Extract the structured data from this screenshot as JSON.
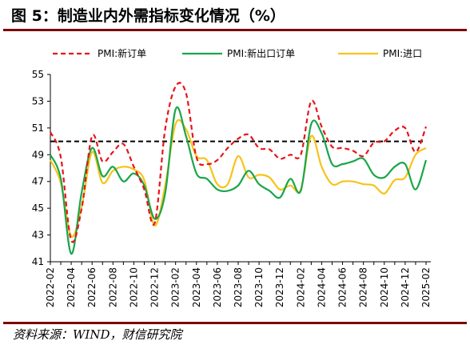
{
  "header": {
    "title": "图 5：制造业内外需指标变化情况（%）"
  },
  "footer": {
    "source": "资料来源：WIND，财信研究院"
  },
  "chart_data": {
    "type": "line",
    "ylim": [
      41,
      55
    ],
    "yticks": [
      41,
      43,
      45,
      47,
      49,
      51,
      53,
      55
    ],
    "xticks": [
      "2022-02",
      "2022-04",
      "2022-06",
      "2022-08",
      "2022-10",
      "2022-12",
      "2023-02",
      "2023-04",
      "2023-06",
      "2023-08",
      "2023-10",
      "2023-12",
      "2024-02",
      "2024-04",
      "2024-06",
      "2024-08",
      "2024-10",
      "2024-12",
      "2025-02"
    ],
    "x": [
      "2022-02",
      "2022-03",
      "2022-04",
      "2022-05",
      "2022-06",
      "2022-07",
      "2022-08",
      "2022-09",
      "2022-10",
      "2022-11",
      "2022-12",
      "2023-01",
      "2023-02",
      "2023-03",
      "2023-04",
      "2023-05",
      "2023-06",
      "2023-07",
      "2023-08",
      "2023-09",
      "2023-10",
      "2023-11",
      "2023-12",
      "2024-01",
      "2024-02",
      "2024-03",
      "2024-04",
      "2024-05",
      "2024-06",
      "2024-07",
      "2024-08",
      "2024-09",
      "2024-10",
      "2024-11",
      "2024-12",
      "2025-01",
      "2025-02"
    ],
    "reference_line": 50,
    "legend_position": "top",
    "series": [
      {
        "name": "PMI:新订单",
        "color": "#e8141b",
        "style": "dashed",
        "values": [
          50.7,
          48.8,
          42.6,
          45.0,
          50.4,
          48.5,
          49.2,
          49.8,
          48.1,
          46.4,
          43.9,
          50.9,
          54.1,
          53.6,
          48.8,
          48.3,
          48.6,
          49.5,
          50.2,
          50.5,
          49.5,
          49.4,
          48.7,
          49.0,
          49.0,
          53.0,
          51.1,
          49.6,
          49.5,
          49.3,
          48.9,
          49.9,
          50.0,
          50.8,
          51.0,
          49.2,
          51.1
        ]
      },
      {
        "name": "PMI:新出口订单",
        "color": "#1aa64a",
        "style": "solid",
        "values": [
          49.0,
          47.2,
          41.6,
          46.2,
          49.5,
          47.4,
          48.1,
          47.0,
          47.6,
          46.7,
          44.2,
          46.1,
          52.4,
          50.4,
          47.6,
          47.2,
          46.4,
          46.3,
          46.7,
          47.8,
          46.8,
          46.3,
          45.8,
          47.2,
          46.3,
          51.3,
          50.6,
          48.3,
          48.3,
          48.5,
          48.7,
          47.5,
          47.3,
          48.1,
          48.3,
          46.4,
          48.6
        ]
      },
      {
        "name": "PMI:进口",
        "color": "#f7c31a",
        "style": "solid",
        "values": [
          48.6,
          46.9,
          42.9,
          45.1,
          49.2,
          46.9,
          47.8,
          48.1,
          47.9,
          47.1,
          43.7,
          46.7,
          51.3,
          50.9,
          48.9,
          48.6,
          46.8,
          46.8,
          48.9,
          47.3,
          47.5,
          47.3,
          46.4,
          46.7,
          46.4,
          50.4,
          48.1,
          46.8,
          47.0,
          47.0,
          46.8,
          46.7,
          46.1,
          47.1,
          47.3,
          49.0,
          49.5
        ]
      }
    ]
  }
}
